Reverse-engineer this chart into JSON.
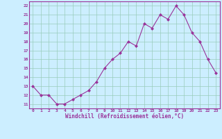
{
  "x": [
    0,
    1,
    2,
    3,
    4,
    5,
    6,
    7,
    8,
    9,
    10,
    11,
    12,
    13,
    14,
    15,
    16,
    17,
    18,
    19,
    20,
    21,
    22,
    23
  ],
  "y": [
    13,
    12,
    12,
    11,
    11,
    11.5,
    12,
    12.5,
    13.5,
    15,
    16,
    16.7,
    18,
    17.5,
    20,
    19.5,
    21,
    20.5,
    22,
    21,
    19,
    18,
    16,
    14.5
  ],
  "line_color": "#993399",
  "marker_color": "#993399",
  "bg_color": "#cceeff",
  "grid_color": "#99ccbb",
  "xlabel": "Windchill (Refroidissement éolien,°C)",
  "xlabel_color": "#993399",
  "ylabel_values": [
    11,
    12,
    13,
    14,
    15,
    16,
    17,
    18,
    19,
    20,
    21,
    22
  ],
  "ylim": [
    10.5,
    22.5
  ],
  "xlim": [
    -0.5,
    23.5
  ],
  "xtick_labels": [
    "0",
    "1",
    "2",
    "3",
    "4",
    "5",
    "6",
    "7",
    "8",
    "9",
    "10",
    "11",
    "12",
    "13",
    "14",
    "15",
    "16",
    "17",
    "18",
    "19",
    "20",
    "21",
    "22",
    "23"
  ]
}
